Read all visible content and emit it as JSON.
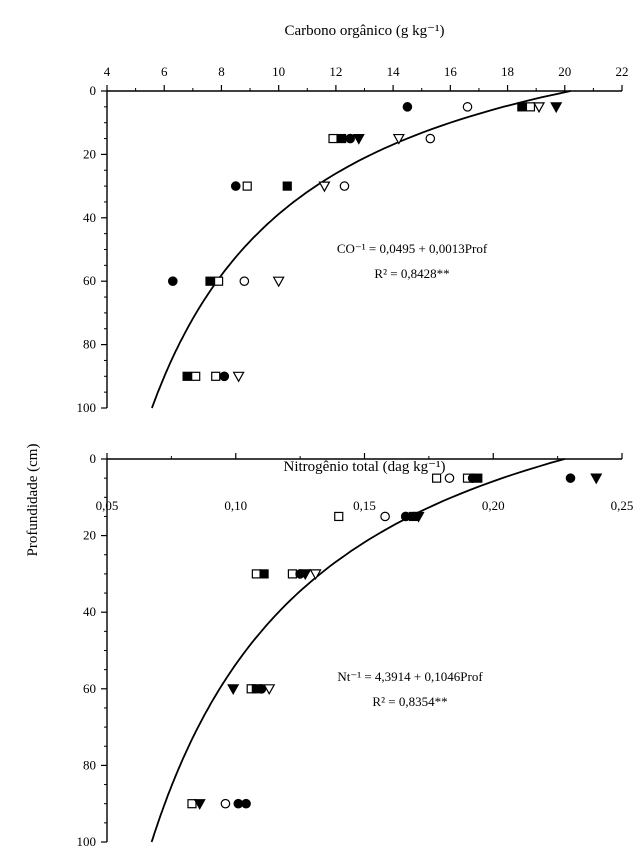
{
  "ylabel": "Profundidade (cm)",
  "chart_data": [
    {
      "type": "scatter",
      "xlabel": "Carbono orgânico (g kg⁻¹)",
      "xlim": [
        4,
        22
      ],
      "xticks": [
        "4",
        "6",
        "8",
        "10",
        "12",
        "14",
        "16",
        "18",
        "20",
        "22"
      ],
      "ylim": [
        100,
        0
      ],
      "yticks": [
        "0",
        "20",
        "40",
        "60",
        "80",
        "100"
      ],
      "equation": "CO⁻¹ = 0,0495 + 0,0013Prof",
      "r2": "R² = 0,8428**",
      "fit": {
        "form": "inverse",
        "a": 0.0495,
        "b": 0.0013,
        "ymin": 0,
        "ymax": 100
      },
      "points": [
        {
          "x": 14.5,
          "y": 5,
          "m": "filled-circle"
        },
        {
          "x": 16.6,
          "y": 5,
          "m": "open-circle"
        },
        {
          "x": 18.5,
          "y": 5,
          "m": "filled-square"
        },
        {
          "x": 18.8,
          "y": 5,
          "m": "open-square"
        },
        {
          "x": 19.1,
          "y": 5,
          "m": "open-triangle"
        },
        {
          "x": 19.7,
          "y": 5,
          "m": "filled-triangle"
        },
        {
          "x": 11.9,
          "y": 15,
          "m": "open-square"
        },
        {
          "x": 12.2,
          "y": 15,
          "m": "filled-square"
        },
        {
          "x": 12.5,
          "y": 15,
          "m": "filled-circle"
        },
        {
          "x": 12.8,
          "y": 15,
          "m": "filled-triangle"
        },
        {
          "x": 14.2,
          "y": 15,
          "m": "open-triangle"
        },
        {
          "x": 15.3,
          "y": 15,
          "m": "open-circle"
        },
        {
          "x": 8.5,
          "y": 30,
          "m": "filled-circle"
        },
        {
          "x": 8.9,
          "y": 30,
          "m": "open-square"
        },
        {
          "x": 10.3,
          "y": 30,
          "m": "filled-square"
        },
        {
          "x": 11.6,
          "y": 30,
          "m": "open-triangle"
        },
        {
          "x": 12.3,
          "y": 30,
          "m": "open-circle"
        },
        {
          "x": 6.3,
          "y": 60,
          "m": "filled-circle"
        },
        {
          "x": 7.6,
          "y": 60,
          "m": "filled-square"
        },
        {
          "x": 7.9,
          "y": 60,
          "m": "open-square"
        },
        {
          "x": 8.8,
          "y": 60,
          "m": "open-circle"
        },
        {
          "x": 10.0,
          "y": 60,
          "m": "open-triangle"
        },
        {
          "x": 6.8,
          "y": 90,
          "m": "filled-square"
        },
        {
          "x": 7.1,
          "y": 90,
          "m": "open-square"
        },
        {
          "x": 7.8,
          "y": 90,
          "m": "open-square"
        },
        {
          "x": 8.1,
          "y": 90,
          "m": "filled-circle"
        },
        {
          "x": 8.6,
          "y": 90,
          "m": "open-triangle"
        }
      ]
    },
    {
      "type": "scatter",
      "xlabel": "Nitrogênio total (dag kg⁻¹)",
      "xlim": [
        0.05,
        0.25
      ],
      "xticks": [
        "0,05",
        "0,10",
        "0,15",
        "0,20",
        "0,25"
      ],
      "ylim": [
        100,
        0
      ],
      "yticks": [
        "0",
        "20",
        "40",
        "60",
        "80",
        "100"
      ],
      "equation": "Nt⁻¹ = 4,3914 + 0,1046Prof",
      "r2": "R² = 0,8354**",
      "fit": {
        "form": "inverse",
        "a": 4.3914,
        "b": 0.1046,
        "ymin": 0,
        "ymax": 100
      },
      "points": [
        {
          "x": 0.178,
          "y": 5,
          "m": "open-square"
        },
        {
          "x": 0.183,
          "y": 5,
          "m": "open-circle"
        },
        {
          "x": 0.19,
          "y": 5,
          "m": "open-square"
        },
        {
          "x": 0.192,
          "y": 5,
          "m": "filled-circle"
        },
        {
          "x": 0.194,
          "y": 5,
          "m": "filled-square"
        },
        {
          "x": 0.23,
          "y": 5,
          "m": "filled-circle"
        },
        {
          "x": 0.24,
          "y": 5,
          "m": "filled-triangle"
        },
        {
          "x": 0.14,
          "y": 15,
          "m": "open-square"
        },
        {
          "x": 0.158,
          "y": 15,
          "m": "open-circle"
        },
        {
          "x": 0.166,
          "y": 15,
          "m": "filled-circle"
        },
        {
          "x": 0.169,
          "y": 15,
          "m": "filled-square"
        },
        {
          "x": 0.171,
          "y": 15,
          "m": "filled-triangle"
        },
        {
          "x": 0.108,
          "y": 30,
          "m": "open-square"
        },
        {
          "x": 0.111,
          "y": 30,
          "m": "filled-square"
        },
        {
          "x": 0.122,
          "y": 30,
          "m": "open-square"
        },
        {
          "x": 0.125,
          "y": 30,
          "m": "filled-circle"
        },
        {
          "x": 0.127,
          "y": 30,
          "m": "filled-triangle"
        },
        {
          "x": 0.131,
          "y": 30,
          "m": "open-triangle"
        },
        {
          "x": 0.099,
          "y": 60,
          "m": "filled-triangle"
        },
        {
          "x": 0.106,
          "y": 60,
          "m": "open-square"
        },
        {
          "x": 0.108,
          "y": 60,
          "m": "filled-square"
        },
        {
          "x": 0.11,
          "y": 60,
          "m": "filled-circle"
        },
        {
          "x": 0.113,
          "y": 60,
          "m": "open-triangle"
        },
        {
          "x": 0.083,
          "y": 90,
          "m": "open-square"
        },
        {
          "x": 0.086,
          "y": 90,
          "m": "filled-triangle"
        },
        {
          "x": 0.096,
          "y": 90,
          "m": "open-circle"
        },
        {
          "x": 0.101,
          "y": 90,
          "m": "filled-circle"
        },
        {
          "x": 0.104,
          "y": 90,
          "m": "filled-circle"
        }
      ]
    }
  ]
}
